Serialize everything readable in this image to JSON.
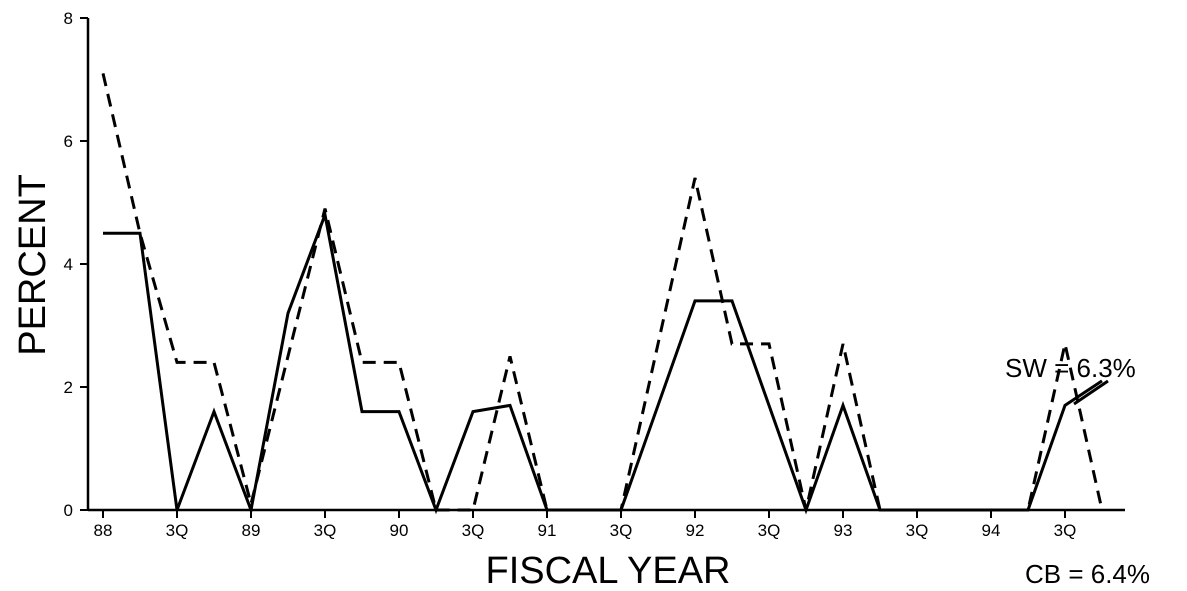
{
  "chart_data": {
    "type": "line",
    "title": "",
    "xlabel": "FISCAL YEAR",
    "ylabel": "PERCENT",
    "ylim": [
      0,
      8
    ],
    "y_ticks": [
      "0",
      "2",
      "4",
      "6",
      "8"
    ],
    "x_ticks": [
      "88",
      "3Q",
      "89",
      "3Q",
      "90",
      "3Q",
      "91",
      "3Q",
      "92",
      "3Q",
      "93",
      "3Q",
      "94",
      "3Q"
    ],
    "grid": false,
    "series": [
      {
        "style": "solid",
        "color": "#000000",
        "points": [
          [
            0,
            4.5
          ],
          [
            0.5,
            4.5
          ],
          [
            1,
            0
          ],
          [
            1.5,
            1.6
          ],
          [
            2,
            0
          ],
          [
            2.5,
            3.2
          ],
          [
            3,
            4.8
          ],
          [
            3.5,
            1.6
          ],
          [
            4,
            1.6
          ],
          [
            4.5,
            0
          ],
          [
            5,
            1.6
          ],
          [
            5.5,
            1.7
          ],
          [
            6,
            0
          ],
          [
            6.5,
            0
          ],
          [
            7,
            0
          ],
          [
            8,
            3.4
          ],
          [
            8.5,
            3.4
          ],
          [
            9,
            1.7
          ],
          [
            9.5,
            0
          ],
          [
            10,
            1.7
          ],
          [
            10.5,
            0
          ],
          [
            11,
            0
          ],
          [
            12,
            0
          ],
          [
            12.5,
            0
          ],
          [
            13,
            1.7
          ],
          [
            13.5,
            2.1
          ]
        ]
      },
      {
        "style": "dashed",
        "color": "#000000",
        "points": [
          [
            0,
            7.1
          ],
          [
            0.5,
            4.5
          ],
          [
            1,
            2.4
          ],
          [
            1.5,
            2.4
          ],
          [
            2,
            0.1
          ],
          [
            3,
            4.9
          ],
          [
            3.5,
            2.4
          ],
          [
            4,
            2.4
          ],
          [
            4.5,
            0
          ],
          [
            5,
            0
          ],
          [
            5.5,
            2.5
          ],
          [
            6,
            0
          ],
          [
            7,
            0
          ],
          [
            8,
            5.4
          ],
          [
            8.5,
            2.7
          ],
          [
            9,
            2.7
          ],
          [
            9.5,
            0
          ],
          [
            10,
            2.7
          ],
          [
            10.5,
            0
          ],
          [
            12,
            0
          ],
          [
            12.5,
            0
          ],
          [
            13,
            2.7
          ],
          [
            13.5,
            0
          ]
        ]
      }
    ],
    "annotations": {
      "sw": "SW = 6.3%",
      "cb": "CB = 6.4%"
    }
  }
}
